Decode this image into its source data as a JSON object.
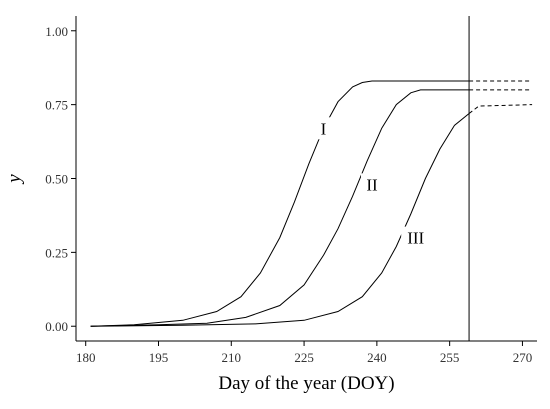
{
  "chart_data": {
    "type": "line",
    "xlabel": "Day of the year (DOY)",
    "ylabel": "y",
    "xlim": [
      178,
      273
    ],
    "ylim": [
      -0.05,
      1.05
    ],
    "x_ticks": [
      180,
      195,
      210,
      225,
      240,
      255,
      270
    ],
    "y_ticks": [
      0.0,
      0.25,
      0.5,
      0.75,
      1.0
    ],
    "y_tick_labels": [
      "0.00",
      "0.25",
      "0.50",
      "0.75",
      "1.00"
    ],
    "grid": false,
    "reference_line_x": 259,
    "series": [
      {
        "name": "I",
        "label_at": [
          229,
          0.67
        ],
        "solid": [
          [
            181,
            0.0
          ],
          [
            190,
            0.005
          ],
          [
            200,
            0.02
          ],
          [
            207,
            0.05
          ],
          [
            212,
            0.1
          ],
          [
            216,
            0.18
          ],
          [
            220,
            0.3
          ],
          [
            223,
            0.42
          ],
          [
            226,
            0.55
          ],
          [
            229,
            0.67
          ],
          [
            232,
            0.76
          ],
          [
            235,
            0.81
          ],
          [
            237,
            0.825
          ],
          [
            239,
            0.83
          ],
          [
            259,
            0.83
          ]
        ],
        "dashed": [
          [
            259,
            0.83
          ],
          [
            272,
            0.83
          ]
        ]
      },
      {
        "name": "II",
        "label_at": [
          239,
          0.48
        ],
        "solid": [
          [
            181,
            0.0
          ],
          [
            195,
            0.005
          ],
          [
            205,
            0.01
          ],
          [
            213,
            0.03
          ],
          [
            220,
            0.07
          ],
          [
            225,
            0.14
          ],
          [
            229,
            0.24
          ],
          [
            232,
            0.33
          ],
          [
            235,
            0.44
          ],
          [
            238,
            0.56
          ],
          [
            241,
            0.67
          ],
          [
            244,
            0.75
          ],
          [
            247,
            0.79
          ],
          [
            249,
            0.8
          ],
          [
            259,
            0.8
          ]
        ],
        "dashed": [
          [
            259,
            0.8
          ],
          [
            272,
            0.8
          ]
        ]
      },
      {
        "name": "III",
        "label_at": [
          248,
          0.3
        ],
        "solid": [
          [
            181,
            0.0
          ],
          [
            200,
            0.003
          ],
          [
            215,
            0.008
          ],
          [
            225,
            0.02
          ],
          [
            232,
            0.05
          ],
          [
            237,
            0.1
          ],
          [
            241,
            0.18
          ],
          [
            244,
            0.27
          ],
          [
            247,
            0.38
          ],
          [
            250,
            0.5
          ],
          [
            253,
            0.6
          ],
          [
            256,
            0.68
          ],
          [
            259,
            0.72
          ]
        ],
        "dashed": [
          [
            259,
            0.72
          ],
          [
            261,
            0.745
          ],
          [
            272,
            0.75
          ]
        ]
      }
    ]
  }
}
